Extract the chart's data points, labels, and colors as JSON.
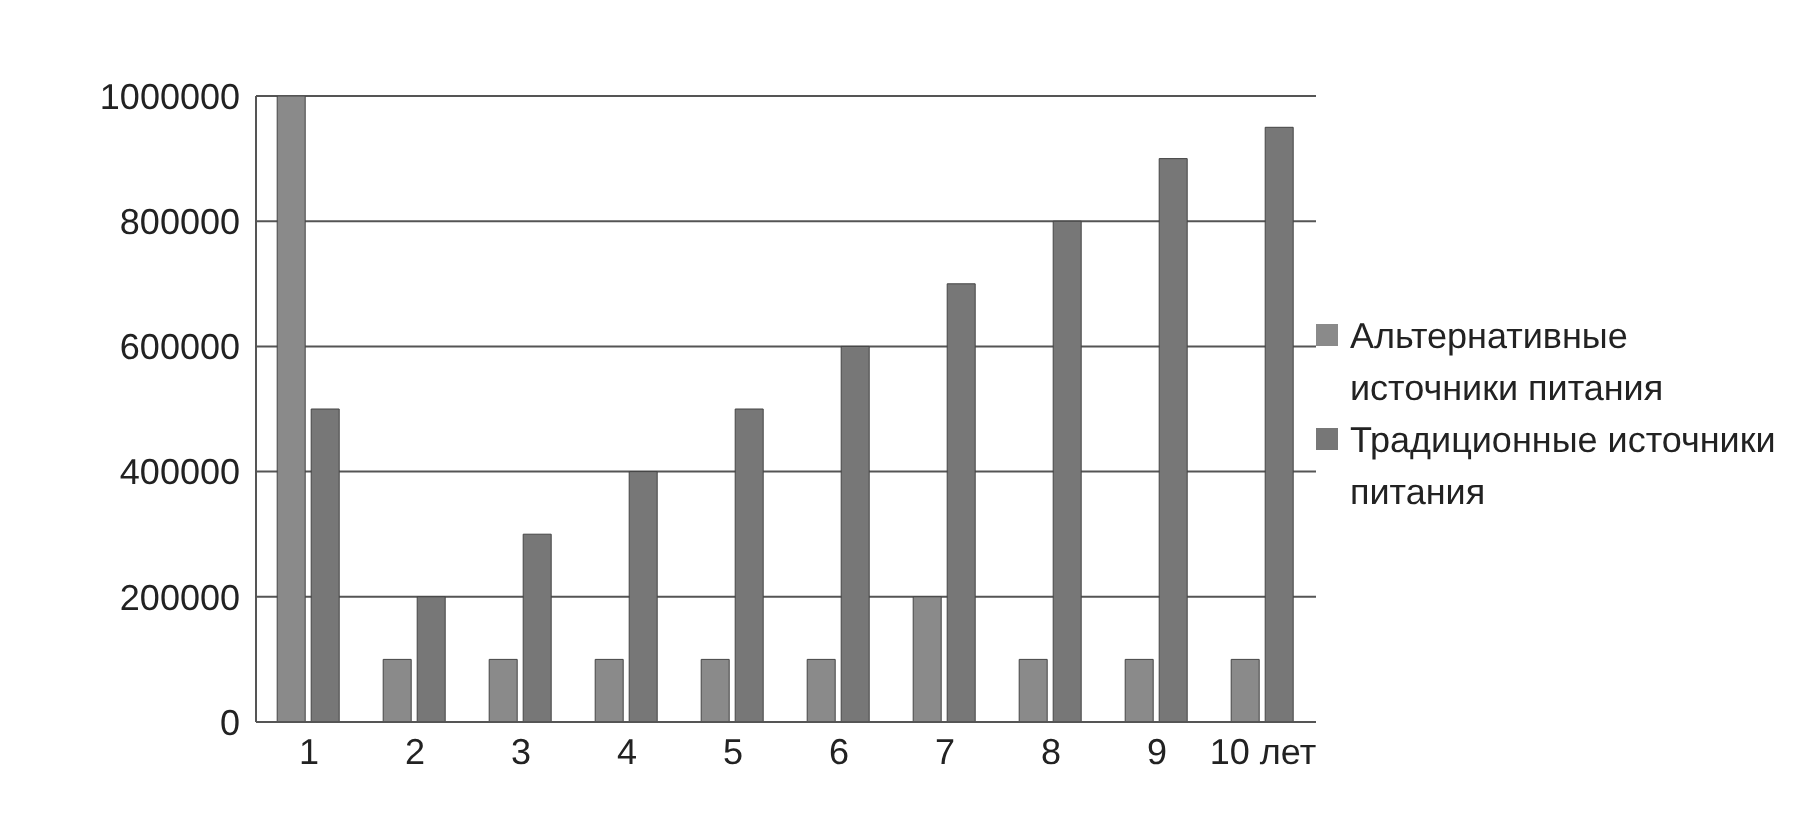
{
  "chart_data": {
    "type": "bar",
    "categories": [
      "1",
      "2",
      "3",
      "4",
      "5",
      "6",
      "7",
      "8",
      "9",
      "10 лет"
    ],
    "series": [
      {
        "name": "Альтернативные источники питания",
        "color": "#8a8a8a",
        "values": [
          1000000,
          100000,
          100000,
          100000,
          100000,
          100000,
          200000,
          100000,
          100000,
          100000
        ]
      },
      {
        "name": "Традиционные источники питания",
        "color": "#777777",
        "values": [
          500000,
          200000,
          300000,
          400000,
          500000,
          600000,
          700000,
          800000,
          900000,
          950000
        ]
      }
    ],
    "ylim": [
      0,
      1000000
    ],
    "yticks": [
      0,
      200000,
      400000,
      600000,
      800000,
      1000000
    ],
    "grid": "y",
    "legend": "right"
  }
}
